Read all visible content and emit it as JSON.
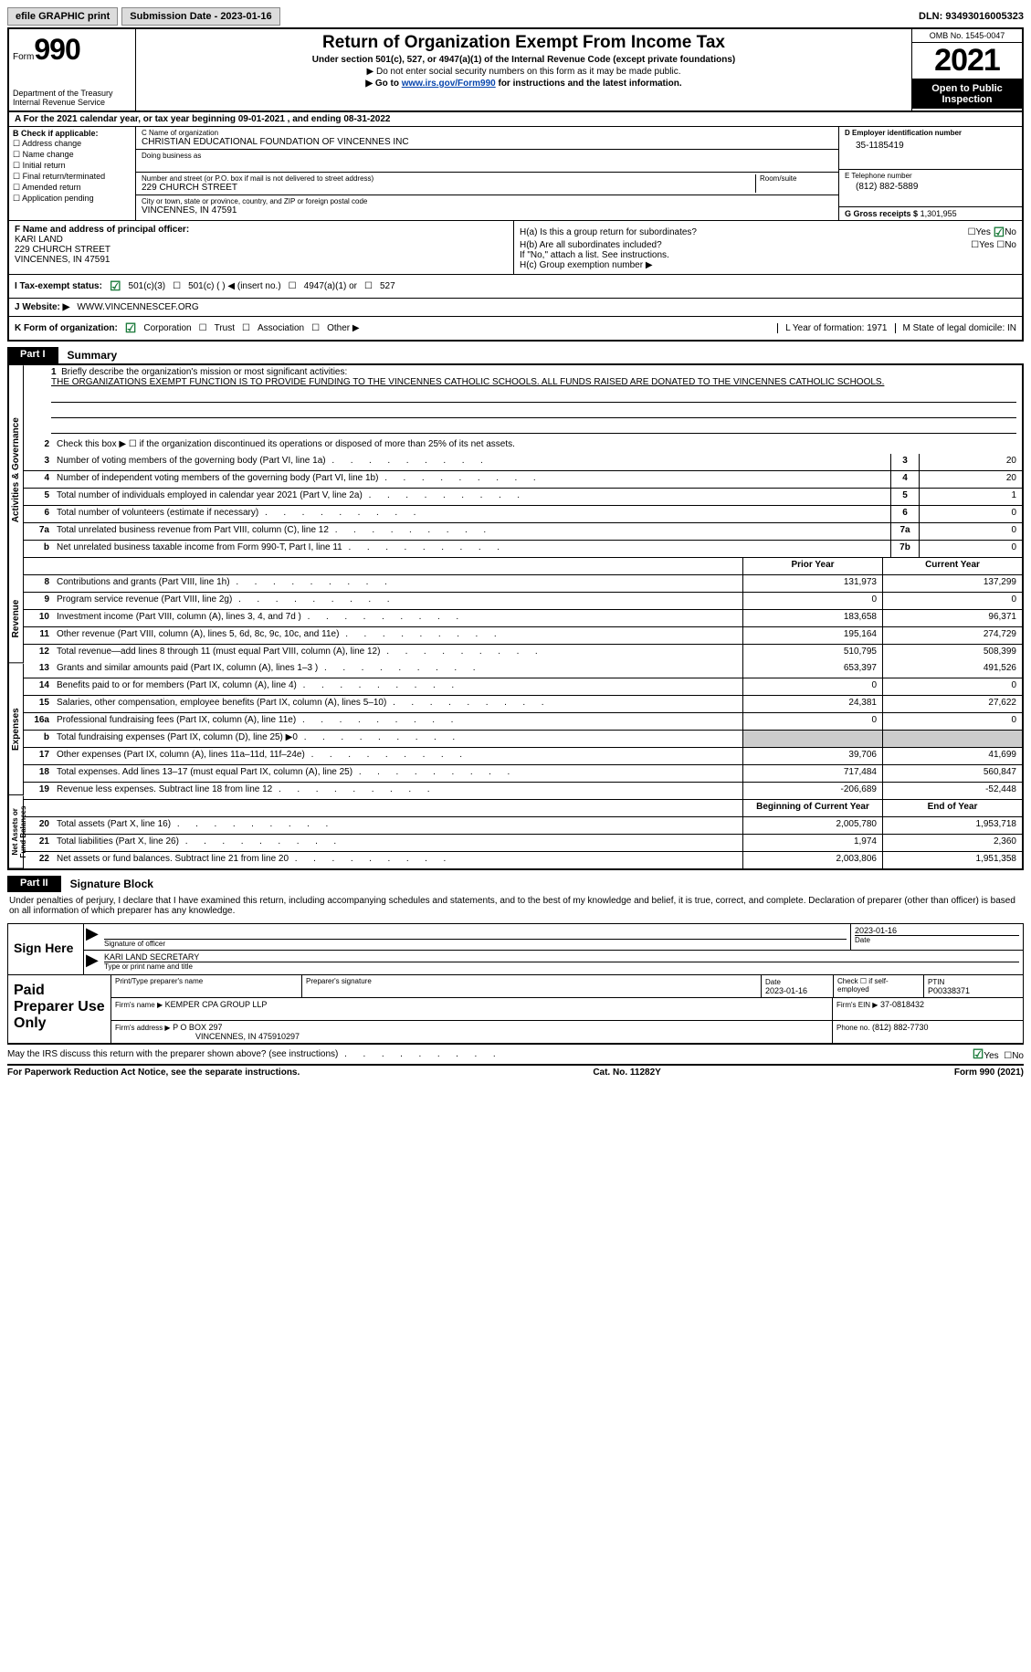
{
  "topbar": {
    "print": "efile GRAPHIC print",
    "submission": "Submission Date - 2023-01-16",
    "dln": "DLN: 93493016005323"
  },
  "header": {
    "form_label": "Form",
    "form_num": "990",
    "dept": "Department of the Treasury\nInternal Revenue Service",
    "title": "Return of Organization Exempt From Income Tax",
    "sub": "Under section 501(c), 527, or 4947(a)(1) of the Internal Revenue Code (except private foundations)",
    "note1": "▶ Do not enter social security numbers on this form as it may be made public.",
    "note2_pre": "▶ Go to ",
    "note2_link": "www.irs.gov/Form990",
    "note2_post": " for instructions and the latest information.",
    "omb": "OMB No. 1545-0047",
    "year": "2021",
    "open": "Open to Public Inspection"
  },
  "lineA": "A For the 2021 calendar year, or tax year beginning 09-01-2021    , and ending 08-31-2022",
  "colB": {
    "label": "B Check if applicable:",
    "items": [
      "Address change",
      "Name change",
      "Initial return",
      "Final return/terminated",
      "Amended return",
      "Application pending"
    ]
  },
  "colC": {
    "name_label": "C Name of organization",
    "name": "CHRISTIAN EDUCATIONAL FOUNDATION OF VINCENNES INC",
    "dba_label": "Doing business as",
    "street_label": "Number and street (or P.O. box if mail is not delivered to street address)",
    "room_label": "Room/suite",
    "street": "229 CHURCH STREET",
    "city_label": "City or town, state or province, country, and ZIP or foreign postal code",
    "city": "VINCENNES, IN  47591"
  },
  "colD": {
    "ein_label": "D Employer identification number",
    "ein": "35-1185419",
    "phone_label": "E Telephone number",
    "phone": "(812) 882-5889",
    "gross_label": "G Gross receipts $",
    "gross": "1,301,955"
  },
  "rowF": {
    "label": "F Name and address of principal officer:",
    "name": "KARI LAND",
    "street": "229 CHURCH STREET",
    "city": "VINCENNES, IN  47591"
  },
  "rowH": {
    "ha": "H(a)  Is this a group return for subordinates?",
    "hb": "H(b)  Are all subordinates included?",
    "hb_note": "If \"No,\" attach a list. See instructions.",
    "hc": "H(c)  Group exemption number ▶",
    "yes": "Yes",
    "no": "No"
  },
  "rowI": {
    "label": "I   Tax-exempt status:",
    "opt1": "501(c)(3)",
    "opt2": "501(c) (   ) ◀ (insert no.)",
    "opt3": "4947(a)(1) or",
    "opt4": "527"
  },
  "rowJ": {
    "label": "J   Website: ▶",
    "val": "WWW.VINCENNESCEF.ORG"
  },
  "rowK": {
    "label": "K Form of organization:",
    "opts": [
      "Corporation",
      "Trust",
      "Association",
      "Other ▶"
    ],
    "L": "L Year of formation: 1971",
    "M": "M State of legal domicile: IN"
  },
  "part1": {
    "num": "Part I",
    "title": "Summary"
  },
  "summary": {
    "vtext1": "Activities & Governance",
    "vtext2": "Revenue",
    "vtext3": "Expenses",
    "vtext4": "Net Assets or Fund Balances",
    "q1": "Briefly describe the organization's mission or most significant activities:",
    "mission": "THE ORGANIZATIONS EXEMPT FUNCTION IS TO PROVIDE FUNDING TO THE VINCENNES CATHOLIC SCHOOLS. ALL FUNDS RAISED ARE DONATED TO THE VINCENNES CATHOLIC SCHOOLS.",
    "q2": "Check this box ▶ ☐  if the organization discontinued its operations or disposed of more than 25% of its net assets.",
    "rows_ag": [
      {
        "n": "3",
        "d": "Number of voting members of the governing body (Part VI, line 1a)",
        "b": "3",
        "v": "20"
      },
      {
        "n": "4",
        "d": "Number of independent voting members of the governing body (Part VI, line 1b)",
        "b": "4",
        "v": "20"
      },
      {
        "n": "5",
        "d": "Total number of individuals employed in calendar year 2021 (Part V, line 2a)",
        "b": "5",
        "v": "1"
      },
      {
        "n": "6",
        "d": "Total number of volunteers (estimate if necessary)",
        "b": "6",
        "v": "0"
      },
      {
        "n": "7a",
        "d": "Total unrelated business revenue from Part VIII, column (C), line 12",
        "b": "7a",
        "v": "0"
      },
      {
        "n": "b",
        "d": "Net unrelated business taxable income from Form 990-T, Part I, line 11",
        "b": "7b",
        "v": "0"
      }
    ],
    "hdr_prior": "Prior Year",
    "hdr_curr": "Current Year",
    "rows_rev": [
      {
        "n": "8",
        "d": "Contributions and grants (Part VIII, line 1h)",
        "p": "131,973",
        "c": "137,299"
      },
      {
        "n": "9",
        "d": "Program service revenue (Part VIII, line 2g)",
        "p": "0",
        "c": "0"
      },
      {
        "n": "10",
        "d": "Investment income (Part VIII, column (A), lines 3, 4, and 7d )",
        "p": "183,658",
        "c": "96,371"
      },
      {
        "n": "11",
        "d": "Other revenue (Part VIII, column (A), lines 5, 6d, 8c, 9c, 10c, and 11e)",
        "p": "195,164",
        "c": "274,729"
      },
      {
        "n": "12",
        "d": "Total revenue—add lines 8 through 11 (must equal Part VIII, column (A), line 12)",
        "p": "510,795",
        "c": "508,399"
      }
    ],
    "rows_exp": [
      {
        "n": "13",
        "d": "Grants and similar amounts paid (Part IX, column (A), lines 1–3 )",
        "p": "653,397",
        "c": "491,526"
      },
      {
        "n": "14",
        "d": "Benefits paid to or for members (Part IX, column (A), line 4)",
        "p": "0",
        "c": "0"
      },
      {
        "n": "15",
        "d": "Salaries, other compensation, employee benefits (Part IX, column (A), lines 5–10)",
        "p": "24,381",
        "c": "27,622"
      },
      {
        "n": "16a",
        "d": "Professional fundraising fees (Part IX, column (A), line 11e)",
        "p": "0",
        "c": "0"
      },
      {
        "n": "b",
        "d": "Total fundraising expenses (Part IX, column (D), line 25) ▶0",
        "p": "",
        "c": "",
        "grey": true
      },
      {
        "n": "17",
        "d": "Other expenses (Part IX, column (A), lines 11a–11d, 11f–24e)",
        "p": "39,706",
        "c": "41,699"
      },
      {
        "n": "18",
        "d": "Total expenses. Add lines 13–17 (must equal Part IX, column (A), line 25)",
        "p": "717,484",
        "c": "560,847"
      },
      {
        "n": "19",
        "d": "Revenue less expenses. Subtract line 18 from line 12",
        "p": "-206,689",
        "c": "-52,448"
      }
    ],
    "hdr_beg": "Beginning of Current Year",
    "hdr_end": "End of Year",
    "rows_net": [
      {
        "n": "20",
        "d": "Total assets (Part X, line 16)",
        "p": "2,005,780",
        "c": "1,953,718"
      },
      {
        "n": "21",
        "d": "Total liabilities (Part X, line 26)",
        "p": "1,974",
        "c": "2,360"
      },
      {
        "n": "22",
        "d": "Net assets or fund balances. Subtract line 21 from line 20",
        "p": "2,003,806",
        "c": "1,951,358"
      }
    ]
  },
  "part2": {
    "num": "Part II",
    "title": "Signature Block"
  },
  "sig": {
    "decl": "Under penalties of perjury, I declare that I have examined this return, including accompanying schedules and statements, and to the best of my knowledge and belief, it is true, correct, and complete. Declaration of preparer (other than officer) is based on all information of which preparer has any knowledge.",
    "here": "Sign Here",
    "sig_label": "Signature of officer",
    "date": "2023-01-16",
    "date_label": "Date",
    "name": "KARI LAND  SECRETARY",
    "name_label": "Type or print name and title"
  },
  "prep": {
    "label": "Paid Preparer Use Only",
    "h_name": "Print/Type preparer's name",
    "h_sig": "Preparer's signature",
    "h_date_label": "Date",
    "h_date": "2023-01-16",
    "h_check": "Check ☐ if self-employed",
    "h_ptin_label": "PTIN",
    "h_ptin": "P00338371",
    "firm_name_label": "Firm's name    ▶",
    "firm_name": "KEMPER CPA GROUP LLP",
    "firm_ein_label": "Firm's EIN ▶",
    "firm_ein": "37-0818432",
    "firm_addr_label": "Firm's address ▶",
    "firm_addr1": "P O BOX 297",
    "firm_addr2": "VINCENNES, IN  475910297",
    "firm_phone_label": "Phone no.",
    "firm_phone": "(812) 882-7730"
  },
  "footer": {
    "q": "May the IRS discuss this return with the preparer shown above? (see instructions)",
    "yes": "Yes",
    "no": "No",
    "paperwork": "For Paperwork Reduction Act Notice, see the separate instructions.",
    "cat": "Cat. No. 11282Y",
    "form": "Form 990 (2021)"
  }
}
